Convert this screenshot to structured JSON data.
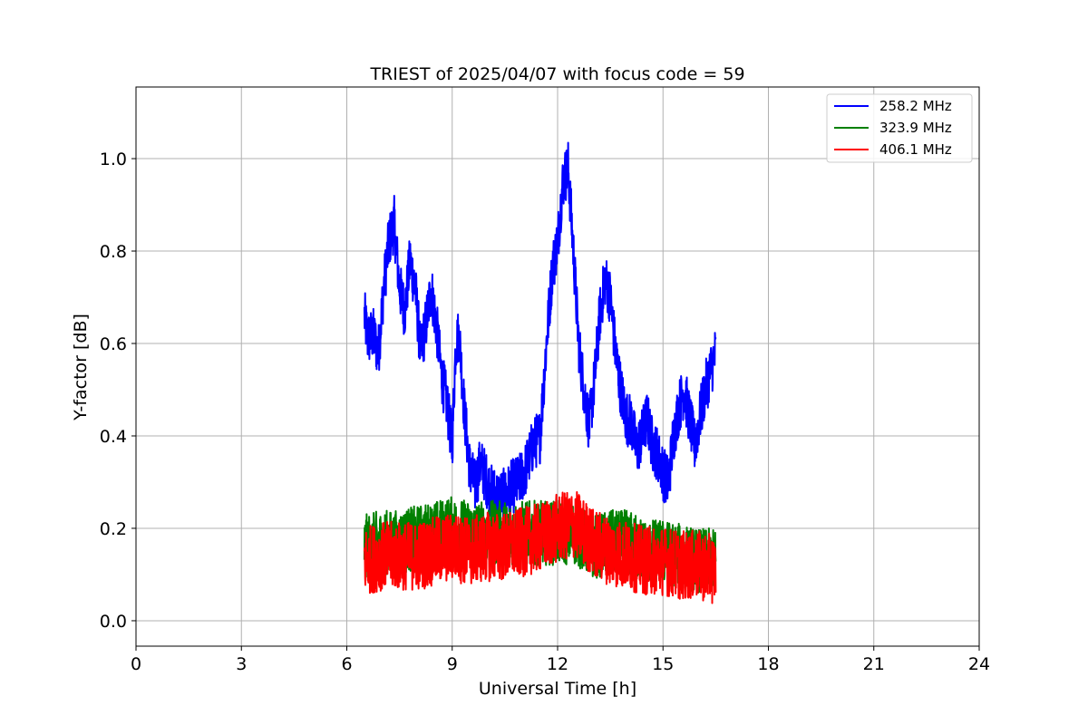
{
  "chart_data": {
    "type": "line",
    "title": "TRIEST of 2025/04/07 with focus code = 59",
    "xlabel": "Universal Time [h]",
    "ylabel": "Y-factor [dB]",
    "xlim": [
      0,
      24
    ],
    "ylim": [
      -0.055,
      1.155
    ],
    "xticks": [
      0,
      3,
      6,
      9,
      12,
      15,
      18,
      21,
      24
    ],
    "yticks": [
      0.0,
      0.2,
      0.4,
      0.6,
      0.8,
      1.0
    ],
    "xtick_labels": [
      "0",
      "3",
      "6",
      "9",
      "12",
      "15",
      "18",
      "21",
      "24"
    ],
    "ytick_labels": [
      "0.0",
      "0.2",
      "0.4",
      "0.6",
      "0.8",
      "1.0"
    ],
    "grid": true,
    "legend_position": "top-right",
    "series": [
      {
        "name": "258.2 MHz",
        "color": "#0000ff",
        "x": [
          6.5,
          6.6,
          6.75,
          6.9,
          7.05,
          7.2,
          7.35,
          7.5,
          7.65,
          7.8,
          7.95,
          8.1,
          8.25,
          8.4,
          8.55,
          8.7,
          8.85,
          9.0,
          9.1,
          9.2,
          9.35,
          9.5,
          9.65,
          9.8,
          9.95,
          10.1,
          10.3,
          10.5,
          10.7,
          10.9,
          11.1,
          11.3,
          11.5,
          11.7,
          11.85,
          12.0,
          12.15,
          12.3,
          12.45,
          12.6,
          12.75,
          12.9,
          13.05,
          13.2,
          13.35,
          13.5,
          13.65,
          13.8,
          13.95,
          14.1,
          14.25,
          14.4,
          14.55,
          14.7,
          14.85,
          15.0,
          15.15,
          15.3,
          15.45,
          15.6,
          15.75,
          15.9,
          16.05,
          16.2,
          16.35,
          16.5
        ],
        "y": [
          0.66,
          0.61,
          0.62,
          0.58,
          0.72,
          0.82,
          0.86,
          0.72,
          0.67,
          0.78,
          0.72,
          0.58,
          0.64,
          0.72,
          0.64,
          0.53,
          0.47,
          0.38,
          0.6,
          0.62,
          0.45,
          0.33,
          0.29,
          0.34,
          0.31,
          0.28,
          0.27,
          0.27,
          0.29,
          0.3,
          0.33,
          0.38,
          0.4,
          0.62,
          0.76,
          0.82,
          0.95,
          0.98,
          0.8,
          0.6,
          0.5,
          0.42,
          0.52,
          0.66,
          0.74,
          0.7,
          0.58,
          0.5,
          0.44,
          0.43,
          0.37,
          0.4,
          0.44,
          0.38,
          0.36,
          0.32,
          0.3,
          0.4,
          0.46,
          0.5,
          0.44,
          0.38,
          0.44,
          0.5,
          0.54,
          0.58
        ]
      },
      {
        "name": "323.9 MHz",
        "color": "#008000",
        "x": [
          6.5,
          7.0,
          7.5,
          8.0,
          8.5,
          9.0,
          9.5,
          10.0,
          10.5,
          11.0,
          11.5,
          12.0,
          12.5,
          13.0,
          13.5,
          14.0,
          14.5,
          15.0,
          15.5,
          16.0,
          16.5
        ],
        "y": [
          0.16,
          0.17,
          0.17,
          0.18,
          0.19,
          0.2,
          0.19,
          0.19,
          0.19,
          0.19,
          0.19,
          0.19,
          0.19,
          0.16,
          0.17,
          0.17,
          0.15,
          0.15,
          0.14,
          0.13,
          0.13
        ]
      },
      {
        "name": "406.1 MHz",
        "color": "#ff0000",
        "x": [
          6.5,
          7.0,
          7.5,
          8.0,
          8.5,
          9.0,
          9.5,
          10.0,
          10.5,
          11.0,
          11.5,
          12.0,
          12.5,
          13.0,
          13.5,
          14.0,
          14.5,
          15.0,
          15.5,
          16.0,
          16.5
        ],
        "y": [
          0.13,
          0.14,
          0.14,
          0.14,
          0.15,
          0.16,
          0.15,
          0.16,
          0.16,
          0.17,
          0.18,
          0.2,
          0.21,
          0.17,
          0.15,
          0.14,
          0.13,
          0.13,
          0.12,
          0.12,
          0.11
        ]
      }
    ]
  }
}
